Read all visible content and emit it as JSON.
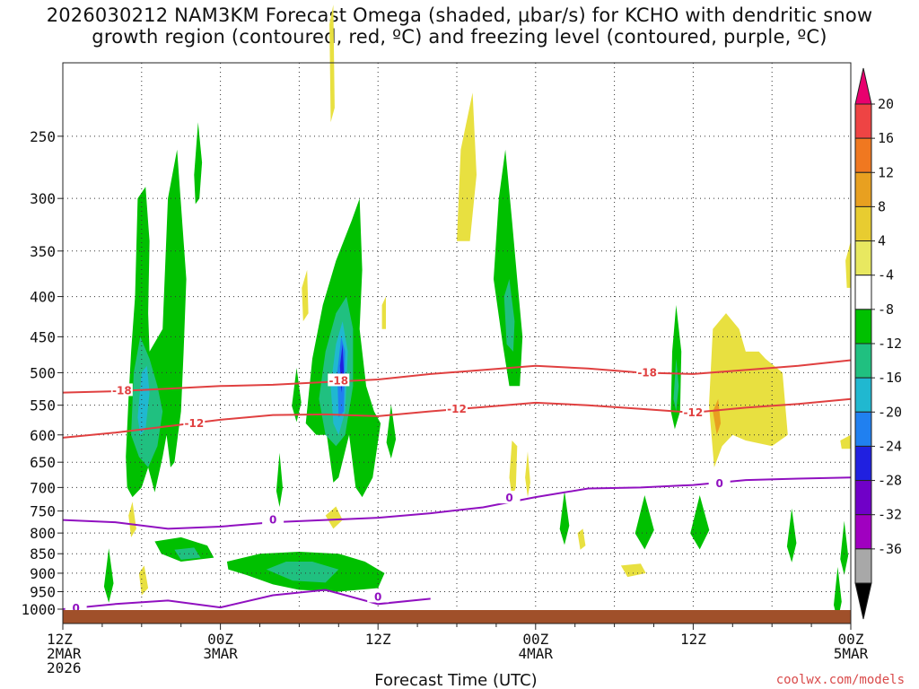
{
  "title_line1": "2026030212 NAM3KM Forecast Omega (shaded, μbar/s) for KCHO with dendritic snow",
  "title_line2": "growth region (contoured, red, ºC) and freezing level (contoured, purple, ºC)",
  "xlabel": "Forecast Time (UTC)",
  "credit": "coolwx.com/models",
  "chart_data": {
    "type": "heatmap",
    "title": "2026030212 NAM3KM Forecast Omega (shaded, μbar/s) for KCHO with dendritic snow growth region (contoured, red, ºC) and freezing level (contoured, purple, ºC)",
    "xlabel": "Forecast Time (UTC)",
    "ylabel": "",
    "x_range_hours": [
      0,
      60
    ],
    "y_range_hpa": [
      1000,
      200
    ],
    "y_scale": "log-pressure",
    "y_ticks": [
      250,
      300,
      350,
      400,
      450,
      500,
      550,
      600,
      650,
      700,
      750,
      800,
      850,
      900,
      950,
      1000
    ],
    "x_ticks": [
      {
        "hour": 0,
        "lines": [
          "12Z",
          "2MAR",
          "2026"
        ]
      },
      {
        "hour": 12,
        "lines": [
          "00Z",
          "3MAR"
        ]
      },
      {
        "hour": 24,
        "lines": [
          "12Z"
        ]
      },
      {
        "hour": 36,
        "lines": [
          "00Z",
          "4MAR"
        ]
      },
      {
        "hour": 48,
        "lines": [
          "12Z"
        ]
      },
      {
        "hour": 60,
        "lines": [
          "00Z",
          "5MAR"
        ]
      }
    ],
    "grid": true,
    "colorbar": {
      "position": "right",
      "levels": [
        20,
        16,
        12,
        8,
        4,
        -4,
        -8,
        -12,
        -16,
        -20,
        -24,
        -28,
        -32,
        -36
      ],
      "colors": [
        "#e8006e",
        "#ee4444",
        "#f07820",
        "#e8a020",
        "#e8cc30",
        "#e8e860",
        "#ffffff",
        "#00c000",
        "#20c080",
        "#20b8d0",
        "#2080f0",
        "#2020e0",
        "#7000c8",
        "#a000c0",
        "#a8a8a8",
        "#000000"
      ]
    },
    "contour_levels": {
      "dgz_red": [
        -18,
        -12
      ],
      "freezing_purple": [
        0
      ]
    },
    "dgz_minus18": [
      [
        0,
        530
      ],
      [
        4,
        528
      ],
      [
        8,
        524
      ],
      [
        12,
        520
      ],
      [
        16,
        518
      ],
      [
        20,
        514
      ],
      [
        24,
        510
      ],
      [
        28,
        502
      ],
      [
        32,
        496
      ],
      [
        36,
        490
      ],
      [
        40,
        494
      ],
      [
        44,
        500
      ],
      [
        48,
        502
      ],
      [
        52,
        496
      ],
      [
        56,
        490
      ],
      [
        60,
        482
      ]
    ],
    "dgz_minus12": [
      [
        0,
        605
      ],
      [
        4,
        596
      ],
      [
        8,
        585
      ],
      [
        12,
        574
      ],
      [
        16,
        566
      ],
      [
        20,
        565
      ],
      [
        24,
        568
      ],
      [
        28,
        560
      ],
      [
        32,
        553
      ],
      [
        36,
        546
      ],
      [
        40,
        550
      ],
      [
        44,
        556
      ],
      [
        48,
        562
      ],
      [
        52,
        554
      ],
      [
        56,
        548
      ],
      [
        60,
        540
      ]
    ],
    "freezing_level_upper": [
      [
        0,
        770
      ],
      [
        4,
        775
      ],
      [
        8,
        790
      ],
      [
        12,
        785
      ],
      [
        16,
        775
      ],
      [
        20,
        770
      ],
      [
        24,
        765
      ],
      [
        28,
        755
      ],
      [
        32,
        742
      ],
      [
        36,
        720
      ],
      [
        40,
        702
      ],
      [
        44,
        700
      ],
      [
        48,
        695
      ],
      [
        52,
        685
      ],
      [
        56,
        682
      ],
      [
        60,
        680
      ]
    ],
    "freezing_level_lower": [
      [
        0,
        1000
      ],
      [
        4,
        985
      ],
      [
        8,
        975
      ],
      [
        12,
        995
      ],
      [
        16,
        960
      ],
      [
        20,
        945
      ],
      [
        24,
        985
      ],
      [
        28,
        970
      ]
    ]
  }
}
